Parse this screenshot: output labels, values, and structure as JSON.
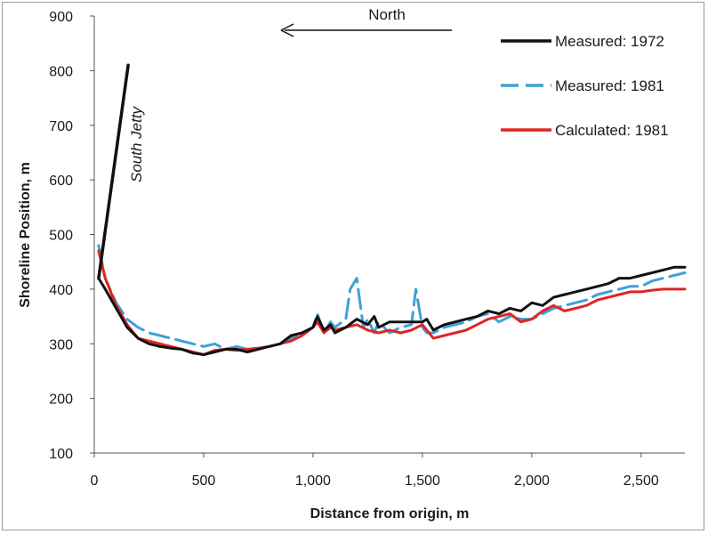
{
  "chart_data": {
    "type": "line",
    "xlabel": "Distance from origin, m",
    "ylabel": "Shoreline Position, m",
    "xlim": [
      0,
      2700
    ],
    "ylim": [
      100,
      900
    ],
    "x_ticks": [
      0,
      500,
      1000,
      1500,
      2000,
      2500
    ],
    "x_tick_labels": [
      "0",
      "500",
      "1,000",
      "1,500",
      "2,000",
      "2,500"
    ],
    "y_ticks": [
      100,
      200,
      300,
      400,
      500,
      600,
      700,
      800,
      900
    ],
    "y_tick_labels": [
      "100",
      "200",
      "300",
      "400",
      "500",
      "600",
      "700",
      "800",
      "900"
    ],
    "grid": false,
    "legend_position": "top-right",
    "annotations": {
      "north_label": "North",
      "jetty_label": "South Jetty"
    },
    "jetty_line": {
      "x": [
        20,
        155
      ],
      "y": [
        420,
        810
      ]
    },
    "series": [
      {
        "name": "Measured: 1972",
        "color": "#111111",
        "style": "solid",
        "x": [
          20,
          50,
          100,
          150,
          200,
          250,
          300,
          350,
          400,
          450,
          500,
          550,
          600,
          650,
          700,
          750,
          800,
          850,
          900,
          950,
          1000,
          1020,
          1050,
          1080,
          1100,
          1150,
          1200,
          1250,
          1280,
          1300,
          1350,
          1400,
          1450,
          1500,
          1520,
          1550,
          1600,
          1650,
          1700,
          1750,
          1800,
          1850,
          1900,
          1950,
          2000,
          2050,
          2100,
          2150,
          2200,
          2250,
          2300,
          2350,
          2400,
          2450,
          2500,
          2550,
          2600,
          2650,
          2700
        ],
        "y": [
          420,
          400,
          365,
          330,
          310,
          300,
          295,
          292,
          290,
          283,
          280,
          285,
          290,
          290,
          285,
          290,
          295,
          300,
          315,
          320,
          330,
          350,
          325,
          335,
          320,
          330,
          345,
          335,
          350,
          330,
          340,
          340,
          340,
          340,
          345,
          325,
          335,
          340,
          345,
          350,
          360,
          355,
          365,
          360,
          375,
          370,
          385,
          390,
          395,
          400,
          405,
          410,
          420,
          420,
          425,
          430,
          435,
          440,
          440
        ]
      },
      {
        "name": "Measured: 1981",
        "color": "#3fa0d8",
        "style": "dashed",
        "x": [
          20,
          50,
          100,
          150,
          200,
          250,
          300,
          350,
          400,
          450,
          500,
          550,
          600,
          650,
          700,
          750,
          800,
          850,
          900,
          950,
          1000,
          1020,
          1050,
          1080,
          1100,
          1150,
          1170,
          1200,
          1230,
          1250,
          1280,
          1300,
          1350,
          1400,
          1450,
          1470,
          1500,
          1520,
          1550,
          1600,
          1650,
          1700,
          1750,
          1800,
          1850,
          1900,
          1950,
          2000,
          2050,
          2100,
          2150,
          2200,
          2250,
          2300,
          2350,
          2400,
          2450,
          2500,
          2550,
          2600,
          2650,
          2700
        ],
        "y": [
          480,
          420,
          375,
          345,
          330,
          320,
          315,
          310,
          305,
          300,
          295,
          300,
          290,
          295,
          290,
          292,
          295,
          300,
          310,
          320,
          330,
          355,
          320,
          340,
          330,
          345,
          400,
          420,
          330,
          345,
          320,
          340,
          320,
          330,
          335,
          400,
          330,
          320,
          320,
          330,
          335,
          340,
          350,
          355,
          340,
          350,
          345,
          345,
          355,
          365,
          370,
          375,
          380,
          390,
          395,
          400,
          405,
          405,
          415,
          420,
          425,
          430
        ]
      },
      {
        "name": "Calculated: 1981",
        "color": "#e02424",
        "style": "solid",
        "x": [
          20,
          50,
          100,
          150,
          200,
          250,
          300,
          350,
          400,
          450,
          500,
          550,
          600,
          650,
          700,
          750,
          800,
          850,
          900,
          950,
          1000,
          1020,
          1050,
          1080,
          1100,
          1150,
          1200,
          1250,
          1300,
          1350,
          1400,
          1450,
          1500,
          1550,
          1600,
          1650,
          1700,
          1750,
          1800,
          1850,
          1900,
          1950,
          2000,
          2050,
          2100,
          2150,
          2200,
          2250,
          2300,
          2350,
          2400,
          2450,
          2500,
          2550,
          2600,
          2650,
          2700
        ],
        "y": [
          470,
          420,
          370,
          335,
          310,
          305,
          300,
          295,
          290,
          285,
          280,
          288,
          290,
          288,
          290,
          292,
          295,
          300,
          305,
          315,
          330,
          340,
          320,
          330,
          325,
          330,
          335,
          325,
          320,
          325,
          320,
          325,
          335,
          310,
          315,
          320,
          325,
          335,
          345,
          350,
          355,
          340,
          345,
          360,
          370,
          360,
          365,
          370,
          380,
          385,
          390,
          395,
          395,
          398,
          400,
          400,
          400
        ]
      }
    ]
  }
}
